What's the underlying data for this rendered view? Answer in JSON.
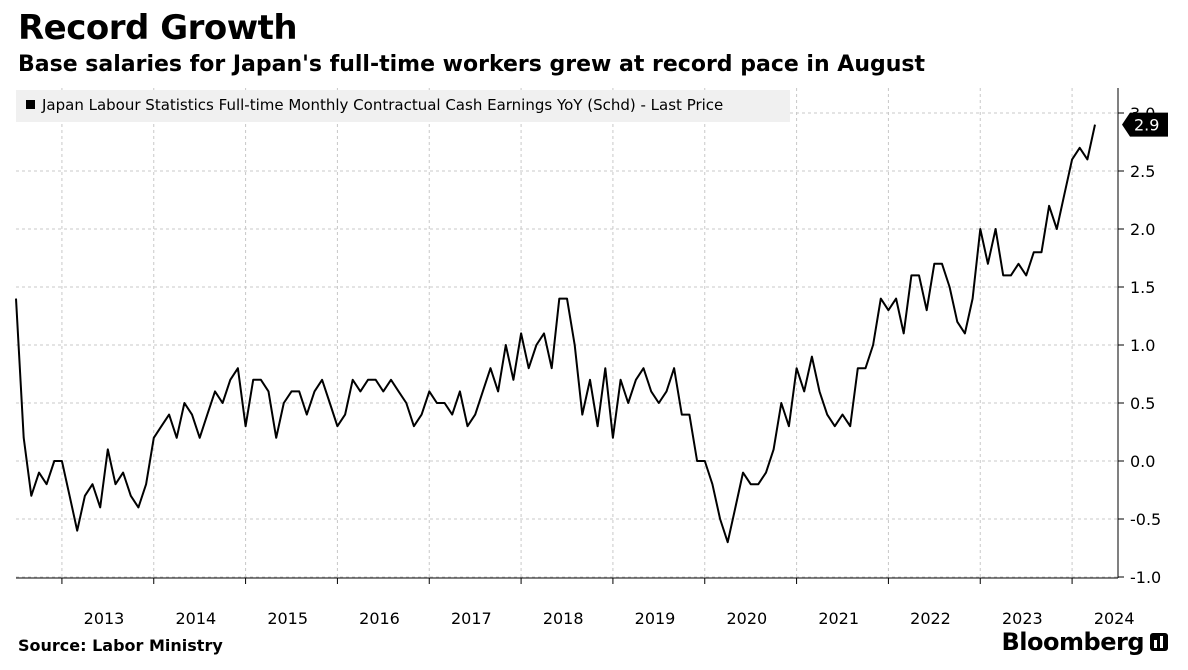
{
  "header": {
    "title": "Record Growth",
    "subtitle": "Base salaries for Japan's full-time workers grew at record pace in August"
  },
  "footer": {
    "source": "Source: Labor Ministry",
    "brand": "Bloomberg"
  },
  "chart_data": {
    "type": "line",
    "title": "Record Growth",
    "subtitle": "Base salaries for Japan's full-time workers grew at record pace in August",
    "legend_placement": "top-left",
    "grid": true,
    "line_color": "#000000",
    "series": [
      {
        "name": "Japan Labour Statistics Full-time Monthly Contractual Cash Earnings YoY (Schd) - Last Price",
        "last_value_label": "2.9",
        "points": [
          [
            "2012-07",
            1.4
          ],
          [
            "2012-08",
            0.2
          ],
          [
            "2012-09",
            -0.3
          ],
          [
            "2012-10",
            -0.1
          ],
          [
            "2012-11",
            -0.2
          ],
          [
            "2012-12",
            0.0
          ],
          [
            "2013-01",
            0.0
          ],
          [
            "2013-02",
            -0.3
          ],
          [
            "2013-03",
            -0.6
          ],
          [
            "2013-04",
            -0.3
          ],
          [
            "2013-05",
            -0.2
          ],
          [
            "2013-06",
            -0.4
          ],
          [
            "2013-07",
            0.1
          ],
          [
            "2013-08",
            -0.2
          ],
          [
            "2013-09",
            -0.1
          ],
          [
            "2013-10",
            -0.3
          ],
          [
            "2013-11",
            -0.4
          ],
          [
            "2013-12",
            -0.2
          ],
          [
            "2014-01",
            0.2
          ],
          [
            "2014-02",
            0.3
          ],
          [
            "2014-03",
            0.4
          ],
          [
            "2014-04",
            0.2
          ],
          [
            "2014-05",
            0.5
          ],
          [
            "2014-06",
            0.4
          ],
          [
            "2014-07",
            0.2
          ],
          [
            "2014-08",
            0.4
          ],
          [
            "2014-09",
            0.6
          ],
          [
            "2014-10",
            0.5
          ],
          [
            "2014-11",
            0.7
          ],
          [
            "2014-12",
            0.8
          ],
          [
            "2015-01",
            0.3
          ],
          [
            "2015-02",
            0.7
          ],
          [
            "2015-03",
            0.7
          ],
          [
            "2015-04",
            0.6
          ],
          [
            "2015-05",
            0.2
          ],
          [
            "2015-06",
            0.5
          ],
          [
            "2015-07",
            0.6
          ],
          [
            "2015-08",
            0.6
          ],
          [
            "2015-09",
            0.4
          ],
          [
            "2015-10",
            0.6
          ],
          [
            "2015-11",
            0.7
          ],
          [
            "2015-12",
            0.5
          ],
          [
            "2016-01",
            0.3
          ],
          [
            "2016-02",
            0.4
          ],
          [
            "2016-03",
            0.7
          ],
          [
            "2016-04",
            0.6
          ],
          [
            "2016-05",
            0.7
          ],
          [
            "2016-06",
            0.7
          ],
          [
            "2016-07",
            0.6
          ],
          [
            "2016-08",
            0.7
          ],
          [
            "2016-09",
            0.6
          ],
          [
            "2016-10",
            0.5
          ],
          [
            "2016-11",
            0.3
          ],
          [
            "2016-12",
            0.4
          ],
          [
            "2017-01",
            0.6
          ],
          [
            "2017-02",
            0.5
          ],
          [
            "2017-03",
            0.5
          ],
          [
            "2017-04",
            0.4
          ],
          [
            "2017-05",
            0.6
          ],
          [
            "2017-06",
            0.3
          ],
          [
            "2017-07",
            0.4
          ],
          [
            "2017-08",
            0.6
          ],
          [
            "2017-09",
            0.8
          ],
          [
            "2017-10",
            0.6
          ],
          [
            "2017-11",
            1.0
          ],
          [
            "2017-12",
            0.7
          ],
          [
            "2018-01",
            1.1
          ],
          [
            "2018-02",
            0.8
          ],
          [
            "2018-03",
            1.0
          ],
          [
            "2018-04",
            1.1
          ],
          [
            "2018-05",
            0.8
          ],
          [
            "2018-06",
            1.4
          ],
          [
            "2018-07",
            1.4
          ],
          [
            "2018-08",
            1.0
          ],
          [
            "2018-09",
            0.4
          ],
          [
            "2018-10",
            0.7
          ],
          [
            "2018-11",
            0.3
          ],
          [
            "2018-12",
            0.8
          ],
          [
            "2019-01",
            0.2
          ],
          [
            "2019-02",
            0.7
          ],
          [
            "2019-03",
            0.5
          ],
          [
            "2019-04",
            0.7
          ],
          [
            "2019-05",
            0.8
          ],
          [
            "2019-06",
            0.6
          ],
          [
            "2019-07",
            0.5
          ],
          [
            "2019-08",
            0.6
          ],
          [
            "2019-09",
            0.8
          ],
          [
            "2019-10",
            0.4
          ],
          [
            "2019-11",
            0.4
          ],
          [
            "2019-12",
            0.0
          ],
          [
            "2020-01",
            0.0
          ],
          [
            "2020-02",
            -0.2
          ],
          [
            "2020-03",
            -0.5
          ],
          [
            "2020-04",
            -0.7
          ],
          [
            "2020-05",
            -0.4
          ],
          [
            "2020-06",
            -0.1
          ],
          [
            "2020-07",
            -0.2
          ],
          [
            "2020-08",
            -0.2
          ],
          [
            "2020-09",
            -0.1
          ],
          [
            "2020-10",
            0.1
          ],
          [
            "2020-11",
            0.5
          ],
          [
            "2020-12",
            0.3
          ],
          [
            "2021-01",
            0.8
          ],
          [
            "2021-02",
            0.6
          ],
          [
            "2021-03",
            0.9
          ],
          [
            "2021-04",
            0.6
          ],
          [
            "2021-05",
            0.4
          ],
          [
            "2021-06",
            0.3
          ],
          [
            "2021-07",
            0.4
          ],
          [
            "2021-08",
            0.3
          ],
          [
            "2021-09",
            0.8
          ],
          [
            "2021-10",
            0.8
          ],
          [
            "2021-11",
            1.0
          ],
          [
            "2021-12",
            1.4
          ],
          [
            "2022-01",
            1.3
          ],
          [
            "2022-02",
            1.4
          ],
          [
            "2022-03",
            1.1
          ],
          [
            "2022-04",
            1.6
          ],
          [
            "2022-05",
            1.6
          ],
          [
            "2022-06",
            1.3
          ],
          [
            "2022-07",
            1.7
          ],
          [
            "2022-08",
            1.7
          ],
          [
            "2022-09",
            1.5
          ],
          [
            "2022-10",
            1.2
          ],
          [
            "2022-11",
            1.1
          ],
          [
            "2022-12",
            1.4
          ],
          [
            "2023-01",
            2.0
          ],
          [
            "2023-02",
            1.7
          ],
          [
            "2023-03",
            2.0
          ],
          [
            "2023-04",
            1.6
          ],
          [
            "2023-05",
            1.6
          ],
          [
            "2023-06",
            1.7
          ],
          [
            "2023-07",
            1.6
          ],
          [
            "2023-08",
            1.8
          ],
          [
            "2023-09",
            1.8
          ],
          [
            "2023-10",
            2.2
          ],
          [
            "2023-11",
            2.0
          ],
          [
            "2023-12",
            2.3
          ],
          [
            "2024-01",
            2.6
          ],
          [
            "2024-02",
            2.7
          ],
          [
            "2024-03",
            2.6
          ],
          [
            "2024-04",
            2.9
          ]
        ]
      }
    ],
    "x_ticks": [
      "2013",
      "2014",
      "2015",
      "2016",
      "2017",
      "2018",
      "2019",
      "2020",
      "2021",
      "2022",
      "2023",
      "2024"
    ],
    "y_ticks": [
      "-1.0",
      "-0.5",
      "0.0",
      "0.5",
      "1.0",
      "1.5",
      "2.0",
      "2.5",
      "3.0"
    ],
    "ylim": [
      -1.0,
      3.0
    ],
    "y_axis_side": "right"
  }
}
